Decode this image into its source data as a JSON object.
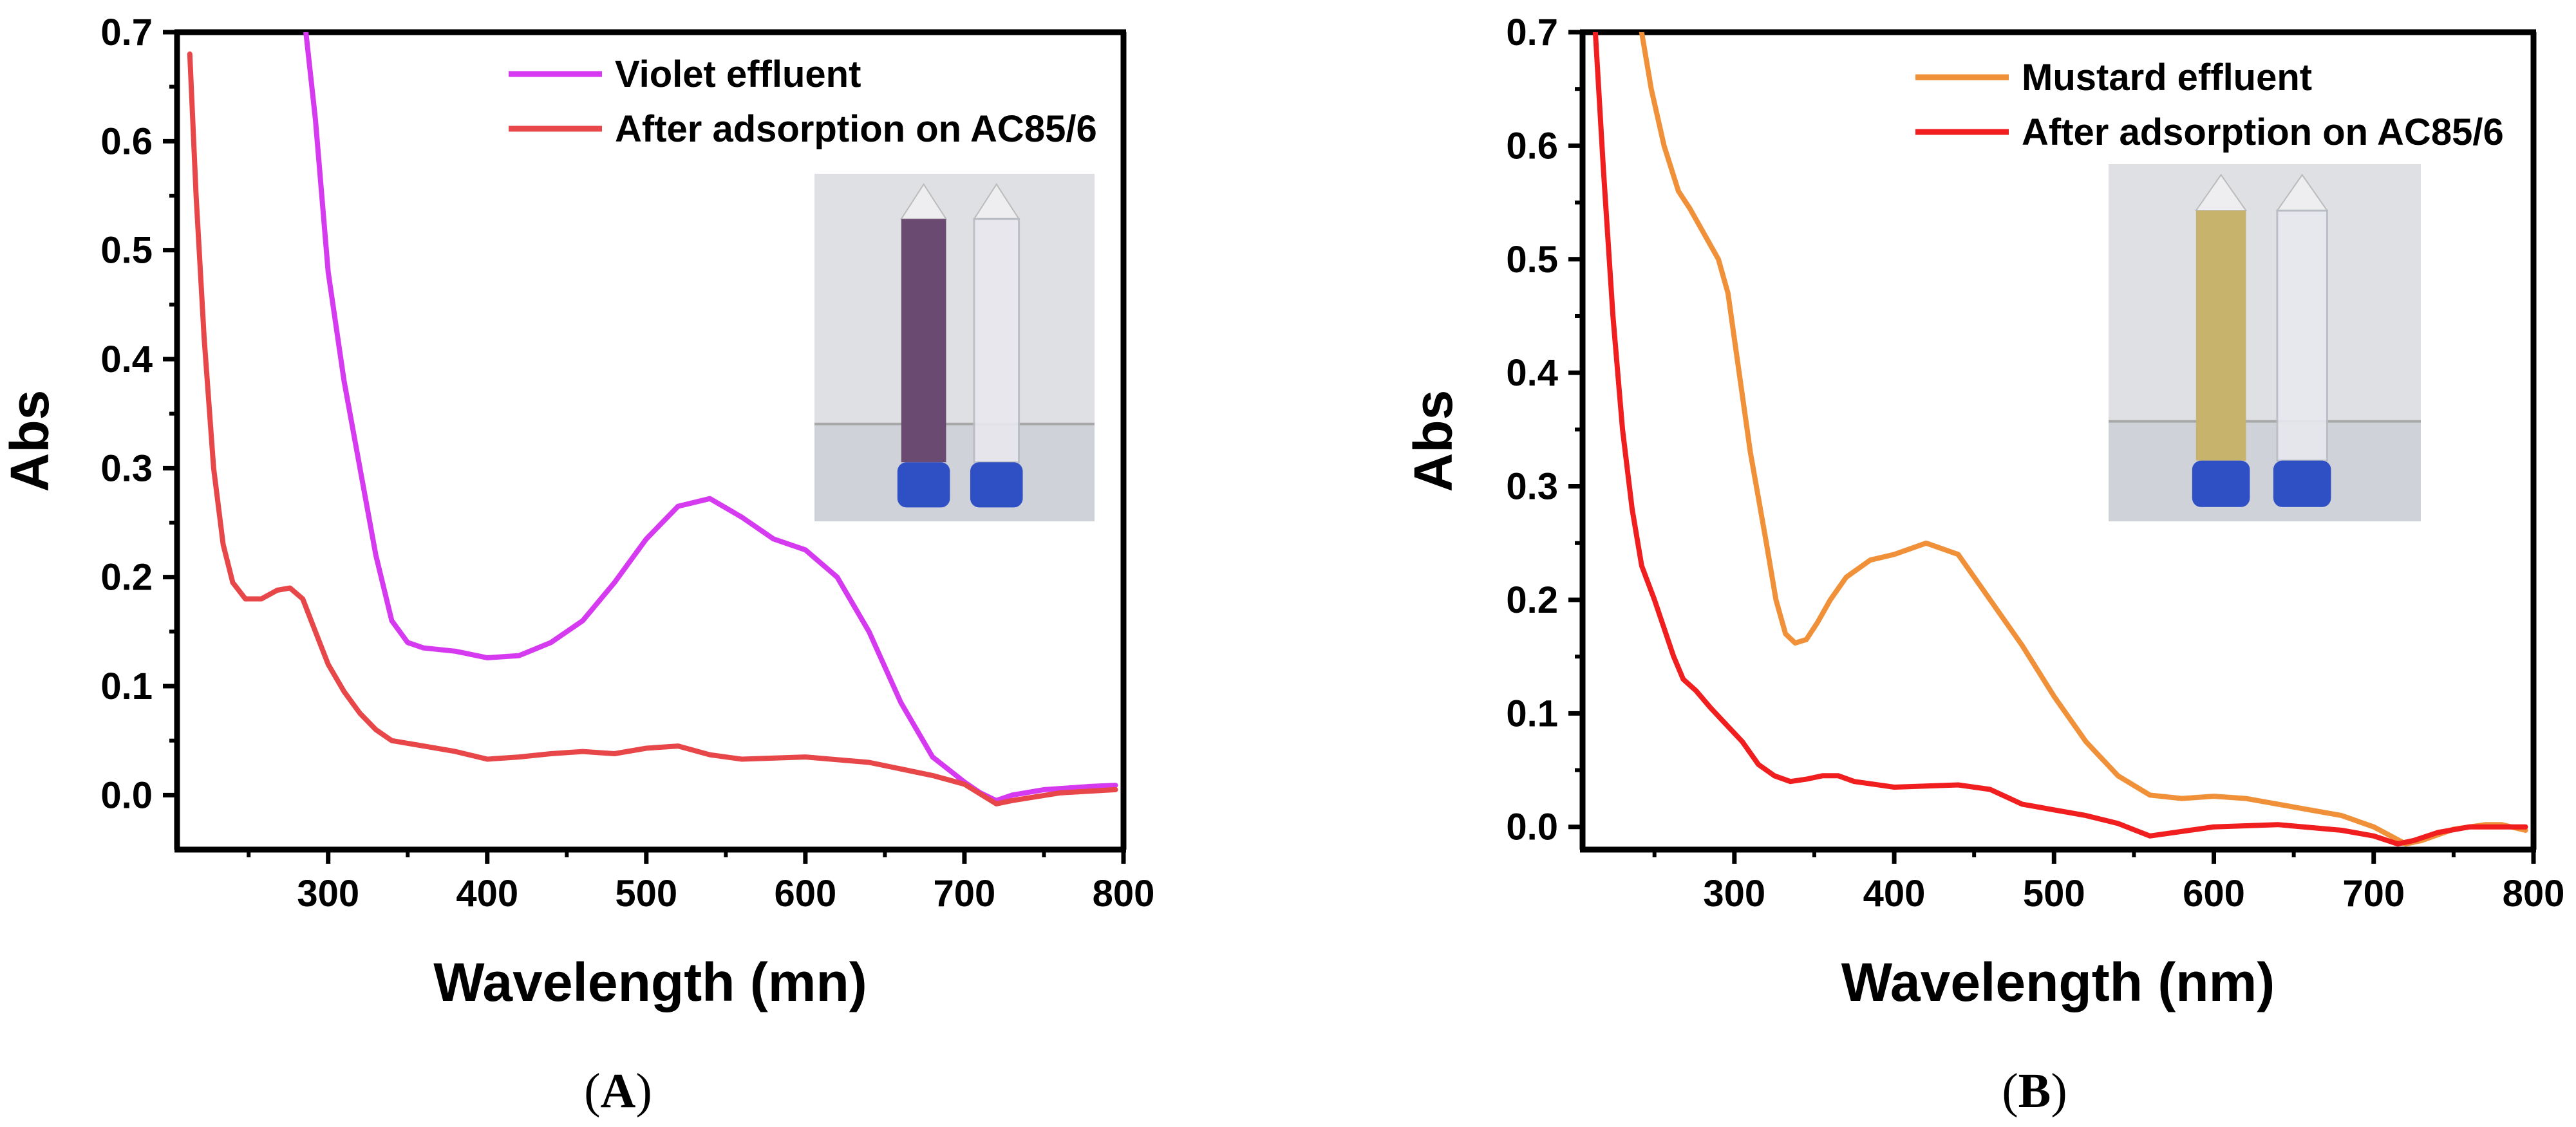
{
  "colors": {
    "violet": "#D63AF0",
    "after_a": "#E8474A",
    "mustard": "#F0913A",
    "after_b": "#F01E1E"
  },
  "chart_data": [
    {
      "type": "line",
      "panel_label": "A",
      "xlabel": "Wavelength (mn)",
      "ylabel": "Abs",
      "xlim": [
        205,
        800
      ],
      "ylim": [
        -0.05,
        0.7
      ],
      "xticks": [
        "300",
        "400",
        "500",
        "600",
        "700",
        "800"
      ],
      "yticks": [
        "0.0",
        "0.1",
        "0.2",
        "0.3",
        "0.4",
        "0.5",
        "0.6",
        "0.7"
      ],
      "legend_position": "top-right",
      "inset_photo": "two-tubes-violet-and-clear",
      "series": [
        {
          "name": "Violet effluent",
          "color_key": "violet",
          "x": [
            286,
            292,
            300,
            310,
            320,
            330,
            340,
            350,
            360,
            380,
            400,
            420,
            440,
            460,
            480,
            500,
            520,
            540,
            560,
            580,
            600,
            620,
            640,
            660,
            680,
            700,
            710,
            720,
            730,
            750,
            780,
            795
          ],
          "y": [
            0.7,
            0.62,
            0.48,
            0.38,
            0.3,
            0.22,
            0.16,
            0.14,
            0.135,
            0.132,
            0.126,
            0.128,
            0.14,
            0.16,
            0.195,
            0.235,
            0.265,
            0.272,
            0.255,
            0.235,
            0.225,
            0.2,
            0.15,
            0.085,
            0.035,
            0.012,
            0.002,
            -0.005,
            0.0,
            0.005,
            0.008,
            0.009
          ]
        },
        {
          "name": "After adsorption on AC85/6",
          "color_key": "after_a",
          "x": [
            213,
            217,
            222,
            228,
            234,
            240,
            248,
            258,
            268,
            276,
            284,
            292,
            300,
            310,
            320,
            330,
            340,
            360,
            380,
            400,
            420,
            440,
            460,
            480,
            500,
            520,
            540,
            560,
            600,
            640,
            680,
            700,
            720,
            730,
            760,
            795
          ],
          "y": [
            0.68,
            0.55,
            0.42,
            0.3,
            0.23,
            0.195,
            0.18,
            0.18,
            0.188,
            0.19,
            0.18,
            0.15,
            0.12,
            0.095,
            0.075,
            0.06,
            0.05,
            0.045,
            0.04,
            0.033,
            0.035,
            0.038,
            0.04,
            0.038,
            0.043,
            0.045,
            0.037,
            0.033,
            0.035,
            0.03,
            0.018,
            0.01,
            -0.008,
            -0.005,
            0.002,
            0.005
          ]
        }
      ]
    },
    {
      "type": "line",
      "panel_label": "B",
      "xlabel": "Wavelength (nm)",
      "ylabel": "Abs",
      "xlim": [
        205,
        800
      ],
      "ylim": [
        -0.02,
        0.7
      ],
      "xticks": [
        "300",
        "400",
        "500",
        "600",
        "700",
        "800"
      ],
      "yticks": [
        "0.0",
        "0.1",
        "0.2",
        "0.3",
        "0.4",
        "0.5",
        "0.6",
        "0.7"
      ],
      "legend_position": "top-right",
      "inset_photo": "two-tubes-mustard-and-clear",
      "series": [
        {
          "name": "Mustard effluent",
          "color_key": "mustard",
          "x": [
            242,
            248,
            256,
            265,
            272,
            280,
            290,
            296,
            300,
            305,
            310,
            315,
            320,
            326,
            332,
            338,
            345,
            352,
            360,
            370,
            385,
            400,
            420,
            440,
            460,
            480,
            500,
            520,
            540,
            560,
            580,
            600,
            620,
            640,
            660,
            680,
            700,
            720,
            730,
            750,
            770,
            780,
            795
          ],
          "y": [
            0.7,
            0.65,
            0.6,
            0.56,
            0.545,
            0.525,
            0.5,
            0.47,
            0.43,
            0.38,
            0.33,
            0.29,
            0.25,
            0.2,
            0.17,
            0.162,
            0.165,
            0.18,
            0.2,
            0.22,
            0.235,
            0.24,
            0.25,
            0.24,
            0.2,
            0.16,
            0.115,
            0.075,
            0.045,
            0.028,
            0.025,
            0.027,
            0.025,
            0.02,
            0.015,
            0.01,
            0.0,
            -0.015,
            -0.012,
            -0.002,
            0.002,
            0.002,
            -0.003
          ]
        },
        {
          "name": "After adsorption on AC85/6",
          "color_key": "after_b",
          "x": [
            213,
            218,
            224,
            230,
            236,
            242,
            250,
            256,
            262,
            268,
            276,
            285,
            295,
            305,
            315,
            325,
            335,
            345,
            355,
            365,
            375,
            385,
            400,
            420,
            440,
            460,
            480,
            500,
            520,
            540,
            560,
            600,
            640,
            680,
            700,
            715,
            725,
            740,
            760,
            795
          ],
          "y": [
            0.7,
            0.58,
            0.45,
            0.35,
            0.28,
            0.23,
            0.2,
            0.175,
            0.15,
            0.13,
            0.12,
            0.105,
            0.09,
            0.075,
            0.055,
            0.045,
            0.04,
            0.042,
            0.045,
            0.045,
            0.04,
            0.038,
            0.035,
            0.036,
            0.037,
            0.033,
            0.02,
            0.015,
            0.01,
            0.003,
            -0.008,
            0.0,
            0.002,
            -0.003,
            -0.008,
            -0.015,
            -0.012,
            -0.005,
            0.0,
            0.0
          ]
        }
      ]
    }
  ]
}
